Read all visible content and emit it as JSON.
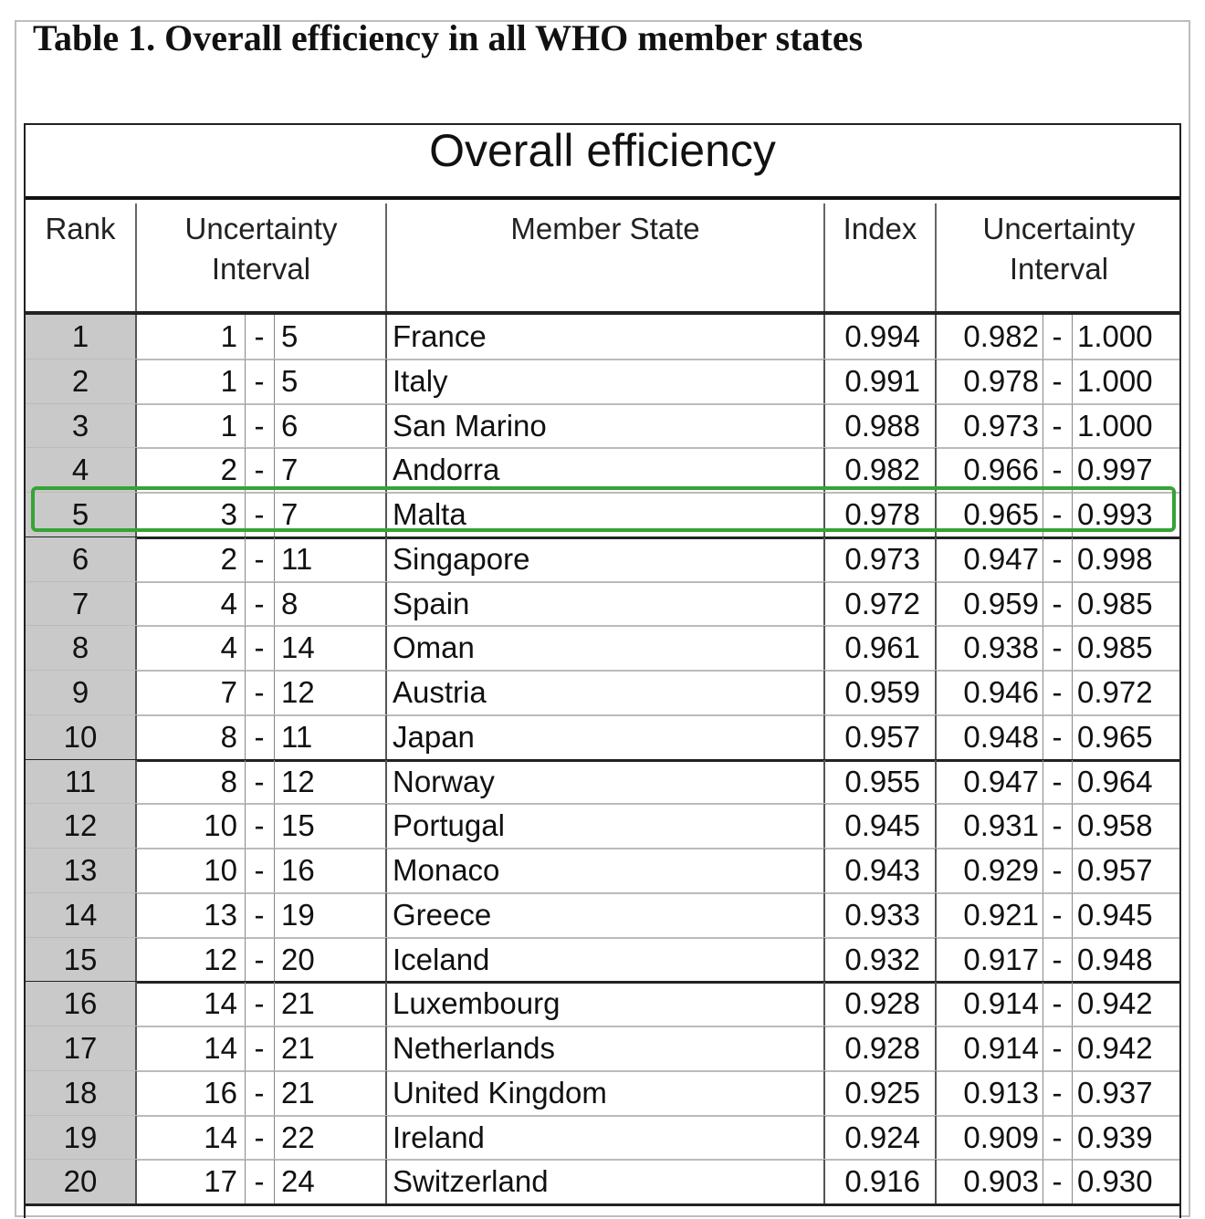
{
  "caption": "Table 1. Overall efficiency in all WHO member states",
  "table_title": "Overall efficiency",
  "headers": {
    "rank": "Rank",
    "uncertainty_rank_line1": "Uncertainty",
    "uncertainty_rank_line2": "Interval",
    "member_state": "Member State",
    "index": "Index",
    "uncertainty_index_line1": "Uncertainty",
    "uncertainty_index_line2": "Interval"
  },
  "dash": "-",
  "highlight_color": "#35a335",
  "rows": [
    {
      "rank": "1",
      "lo": "1",
      "hi": "5",
      "state": "France",
      "index": "0.994",
      "ulo": "0.982",
      "uhi": "1.000"
    },
    {
      "rank": "2",
      "lo": "1",
      "hi": "5",
      "state": "Italy",
      "index": "0.991",
      "ulo": "0.978",
      "uhi": "1.000"
    },
    {
      "rank": "3",
      "lo": "1",
      "hi": "6",
      "state": "San Marino",
      "index": "0.988",
      "ulo": "0.973",
      "uhi": "1.000"
    },
    {
      "rank": "4",
      "lo": "2",
      "hi": "7",
      "state": "Andorra",
      "index": "0.982",
      "ulo": "0.966",
      "uhi": "0.997"
    },
    {
      "rank": "5",
      "lo": "3",
      "hi": "7",
      "state": "Malta",
      "index": "0.978",
      "ulo": "0.965",
      "uhi": "0.993"
    },
    {
      "rank": "6",
      "lo": "2",
      "hi": "11",
      "state": "Singapore",
      "index": "0.973",
      "ulo": "0.947",
      "uhi": "0.998"
    },
    {
      "rank": "7",
      "lo": "4",
      "hi": "8",
      "state": "Spain",
      "index": "0.972",
      "ulo": "0.959",
      "uhi": "0.985"
    },
    {
      "rank": "8",
      "lo": "4",
      "hi": "14",
      "state": "Oman",
      "index": "0.961",
      "ulo": "0.938",
      "uhi": "0.985"
    },
    {
      "rank": "9",
      "lo": "7",
      "hi": "12",
      "state": "Austria",
      "index": "0.959",
      "ulo": "0.946",
      "uhi": "0.972"
    },
    {
      "rank": "10",
      "lo": "8",
      "hi": "11",
      "state": "Japan",
      "index": "0.957",
      "ulo": "0.948",
      "uhi": "0.965"
    },
    {
      "rank": "11",
      "lo": "8",
      "hi": "12",
      "state": "Norway",
      "index": "0.955",
      "ulo": "0.947",
      "uhi": "0.964"
    },
    {
      "rank": "12",
      "lo": "10",
      "hi": "15",
      "state": "Portugal",
      "index": "0.945",
      "ulo": "0.931",
      "uhi": "0.958"
    },
    {
      "rank": "13",
      "lo": "10",
      "hi": "16",
      "state": "Monaco",
      "index": "0.943",
      "ulo": "0.929",
      "uhi": "0.957"
    },
    {
      "rank": "14",
      "lo": "13",
      "hi": "19",
      "state": "Greece",
      "index": "0.933",
      "ulo": "0.921",
      "uhi": "0.945"
    },
    {
      "rank": "15",
      "lo": "12",
      "hi": "20",
      "state": "Iceland",
      "index": "0.932",
      "ulo": "0.917",
      "uhi": "0.948"
    },
    {
      "rank": "16",
      "lo": "14",
      "hi": "21",
      "state": "Luxembourg",
      "index": "0.928",
      "ulo": "0.914",
      "uhi": "0.942"
    },
    {
      "rank": "17",
      "lo": "14",
      "hi": "21",
      "state": "Netherlands",
      "index": "0.928",
      "ulo": "0.914",
      "uhi": "0.942"
    },
    {
      "rank": "18",
      "lo": "16",
      "hi": "21",
      "state": "United Kingdom",
      "index": "0.925",
      "ulo": "0.913",
      "uhi": "0.937"
    },
    {
      "rank": "19",
      "lo": "14",
      "hi": "22",
      "state": "Ireland",
      "index": "0.924",
      "ulo": "0.909",
      "uhi": "0.939"
    },
    {
      "rank": "20",
      "lo": "17",
      "hi": "24",
      "state": "Switzerland",
      "index": "0.916",
      "ulo": "0.903",
      "uhi": "0.930"
    }
  ]
}
